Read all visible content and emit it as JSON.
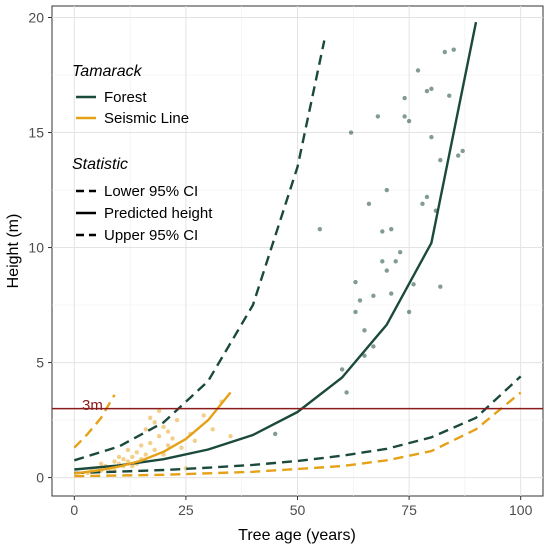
{
  "chart_data": {
    "type": "scatter",
    "xlabel": "Tree age (years)",
    "ylabel": "Height (m)",
    "xlim": [
      -5,
      105
    ],
    "ylim": [
      -0.8,
      20.5
    ],
    "x_ticks": [
      0,
      25,
      50,
      75,
      100
    ],
    "y_ticks": [
      0,
      5,
      10,
      15,
      20
    ],
    "grid": true,
    "legend_placement": "top-left",
    "legend": {
      "group_title": "Tamarack",
      "groups": [
        {
          "name": "Forest",
          "color": "#1b4a3c"
        },
        {
          "name": "Seismic Line",
          "color": "#e5a219"
        }
      ],
      "style_title": "Statistic",
      "styles": [
        {
          "name": "Lower 95% CI",
          "dash": "dashed"
        },
        {
          "name": "Predicted height",
          "dash": "solid"
        },
        {
          "name": "Upper 95% CI",
          "dash": "dashed"
        }
      ]
    },
    "reference_line": {
      "y": 3,
      "label": "3m",
      "color": "#8b1a1a"
    },
    "series": [
      {
        "name": "Forest",
        "color": "#1b4a3c",
        "points_x": [
          45,
          55,
          60,
          61,
          62,
          63,
          63,
          64,
          65,
          65,
          66,
          67,
          67,
          68,
          69,
          69,
          70,
          70,
          71,
          71,
          72,
          73,
          74,
          74,
          75,
          75,
          76,
          77,
          78,
          79,
          79,
          80,
          80,
          81,
          82,
          82,
          83,
          84,
          85,
          86,
          87
        ],
        "points_y": [
          1.9,
          10.8,
          4.7,
          3.7,
          15.0,
          7.2,
          8.5,
          7.7,
          6.4,
          5.3,
          11.9,
          7.9,
          5.7,
          15.7,
          9.4,
          10.7,
          12.5,
          9.0,
          10.8,
          8.0,
          9.4,
          9.8,
          16.5,
          15.7,
          15.5,
          7.2,
          8.4,
          17.7,
          11.9,
          16.8,
          12.2,
          16.9,
          14.8,
          11.6,
          13.8,
          8.3,
          18.5,
          16.6,
          18.6,
          14.0,
          14.2
        ],
        "predicted": {
          "x": [
            0,
            10,
            20,
            30,
            40,
            50,
            60,
            70,
            80,
            90
          ],
          "y": [
            0.35,
            0.53,
            0.8,
            1.22,
            1.85,
            2.85,
            4.35,
            6.65,
            10.2,
            19.8
          ]
        },
        "lower_ci": {
          "x": [
            0,
            10,
            20,
            30,
            40,
            50,
            60,
            70,
            80,
            90,
            100
          ],
          "y": [
            0.2,
            0.26,
            0.33,
            0.43,
            0.55,
            0.72,
            0.95,
            1.25,
            1.75,
            2.6,
            4.4
          ]
        },
        "upper_ci": {
          "x": [
            0,
            10,
            20,
            30,
            40,
            50,
            56
          ],
          "y": [
            0.75,
            1.35,
            2.4,
            4.2,
            7.5,
            13.5,
            19.0
          ]
        }
      },
      {
        "name": "Seismic Line",
        "color": "#e5a219",
        "points_x": [
          3,
          4,
          5,
          6,
          6,
          7,
          8,
          9,
          9,
          10,
          10,
          11,
          11,
          12,
          12,
          13,
          13,
          14,
          14,
          15,
          15,
          16,
          16,
          17,
          17,
          18,
          18,
          19,
          19,
          20,
          20,
          21,
          21,
          22,
          23,
          24,
          25,
          26,
          27,
          29,
          31,
          33,
          35
        ],
        "points_y": [
          0.2,
          0.3,
          0.4,
          0.3,
          0.6,
          0.5,
          0.4,
          0.7,
          0.3,
          0.6,
          0.9,
          0.5,
          0.8,
          0.7,
          1.2,
          0.9,
          0.5,
          1.1,
          0.6,
          1.4,
          0.8,
          2.1,
          1.0,
          2.6,
          1.5,
          2.4,
          1.2,
          2.9,
          1.8,
          2.2,
          1.0,
          2.0,
          1.4,
          1.7,
          2.5,
          1.3,
          0.4,
          1.9,
          1.6,
          2.7,
          2.1,
          3.3,
          1.8
        ],
        "predicted": {
          "x": [
            0,
            5,
            10,
            15,
            20,
            25,
            30,
            35
          ],
          "y": [
            0.18,
            0.3,
            0.48,
            0.74,
            1.12,
            1.68,
            2.5,
            3.7
          ]
        },
        "lower_ci": {
          "x": [
            0,
            20,
            40,
            60,
            70,
            80,
            90,
            100
          ],
          "y": [
            0.06,
            0.12,
            0.25,
            0.5,
            0.75,
            1.15,
            2.1,
            3.7
          ]
        },
        "upper_ci": {
          "x": [
            0,
            3,
            6,
            9
          ],
          "y": [
            1.3,
            1.9,
            2.6,
            3.6
          ]
        }
      }
    ]
  }
}
